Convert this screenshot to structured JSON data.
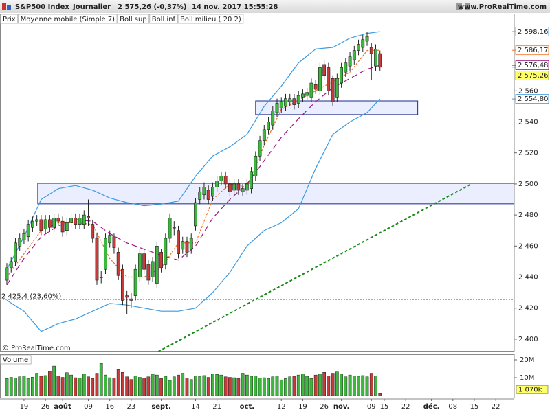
{
  "chart_data": {
    "type": "candlestick",
    "title": "S&P500 Index",
    "period": "Journalier",
    "last_quote": "2 575,26 (-0,37%)",
    "timestamp": "14 nov. 2017 15:55:28",
    "source": "www.ProRealTime.com",
    "watermark": "© ProRealTime.com",
    "xlim": [
      -1.6,
      118.3
    ],
    "xticks": [
      {
        "value": 4,
        "label": "19"
      },
      {
        "value": 9,
        "label": "26"
      },
      {
        "value": 13,
        "label": "août"
      },
      {
        "value": 19,
        "label": "09"
      },
      {
        "value": 24,
        "label": "16"
      },
      {
        "value": 29,
        "label": "23"
      },
      {
        "value": 36,
        "label": "sept."
      },
      {
        "value": 44,
        "label": "14"
      },
      {
        "value": 49,
        "label": "21"
      },
      {
        "value": 56,
        "label": "oct."
      },
      {
        "value": 64,
        "label": "12"
      },
      {
        "value": 69,
        "label": "19"
      },
      {
        "value": 74,
        "label": "26"
      },
      {
        "value": 78,
        "label": "nov."
      },
      {
        "value": 85,
        "label": "09"
      },
      {
        "value": 88,
        "label": "15"
      },
      {
        "value": 93,
        "label": "22"
      },
      {
        "value": 99,
        "label": "déc."
      },
      {
        "value": 104,
        "label": "08"
      },
      {
        "value": 109,
        "label": "15"
      },
      {
        "value": 114,
        "label": "22"
      }
    ],
    "ylim": [
      2392,
      2609.7
    ],
    "yticks": [
      {
        "value": 2400,
        "label": "2 400"
      },
      {
        "value": 2420,
        "label": "2 420"
      },
      {
        "value": 2440,
        "label": "2 440"
      },
      {
        "value": 2460,
        "label": "2 460"
      },
      {
        "value": 2480,
        "label": "2 480"
      },
      {
        "value": 2500,
        "label": "2 500"
      },
      {
        "value": 2520,
        "label": "2 520"
      },
      {
        "value": 2540,
        "label": "2 540"
      },
      {
        "value": 2560,
        "label": "2 560"
      }
    ],
    "candles": {
      "name": "Prix",
      "up_color": "#3cb83c",
      "down_color": "#c93a3a",
      "label_color": "#ffff66",
      "last_label": "2 575,26",
      "open": [
        2438,
        2446,
        2450,
        2460,
        2464,
        2466,
        2472,
        2476,
        2477,
        2471,
        2477,
        2472,
        2478,
        2476,
        2470,
        2475,
        2478,
        2474,
        2474,
        2479,
        2474,
        2465,
        2440,
        2445,
        2462,
        2466,
        2456,
        2445,
        2428,
        2426,
        2428,
        2440,
        2455,
        2448,
        2440,
        2436,
        2456,
        2448,
        2465,
        2472,
        2470,
        2458,
        2463,
        2458,
        2473,
        2490,
        2493,
        2496,
        2492,
        2498,
        2502,
        2505,
        2500,
        2496,
        2500,
        2495,
        2496,
        2497,
        2505,
        2518,
        2528,
        2535,
        2538,
        2546,
        2549,
        2550,
        2553,
        2555,
        2552,
        2556,
        2557,
        2556,
        2564,
        2560,
        2577,
        2575,
        2568,
        2556,
        2565,
        2572,
        2576,
        2580,
        2586,
        2588,
        2592,
        2588,
        2576,
        2584
      ],
      "high": [
        2449,
        2453,
        2465,
        2468,
        2471,
        2477,
        2479,
        2480,
        2480,
        2480,
        2480,
        2481,
        2481,
        2479,
        2478,
        2481,
        2481,
        2481,
        2483,
        2490,
        2477,
        2468,
        2444,
        2468,
        2470,
        2468,
        2459,
        2448,
        2431,
        2430,
        2448,
        2458,
        2458,
        2451,
        2453,
        2463,
        2458,
        2468,
        2481,
        2476,
        2473,
        2466,
        2466,
        2468,
        2491,
        2498,
        2501,
        2499,
        2501,
        2505,
        2508,
        2508,
        2503,
        2503,
        2503,
        2500,
        2503,
        2511,
        2521,
        2531,
        2538,
        2543,
        2550,
        2555,
        2556,
        2558,
        2558,
        2558,
        2560,
        2561,
        2562,
        2568,
        2567,
        2578,
        2580,
        2578,
        2570,
        2571,
        2578,
        2581,
        2585,
        2589,
        2593,
        2596,
        2598,
        2591,
        2590,
        2586
      ],
      "low": [
        2435,
        2443,
        2447,
        2457,
        2461,
        2463,
        2469,
        2473,
        2467,
        2468,
        2469,
        2469,
        2473,
        2466,
        2467,
        2472,
        2471,
        2471,
        2471,
        2473,
        2462,
        2435,
        2436,
        2442,
        2459,
        2455,
        2438,
        2422,
        2416,
        2420,
        2425,
        2437,
        2442,
        2435,
        2437,
        2433,
        2443,
        2445,
        2462,
        2467,
        2452,
        2455,
        2453,
        2455,
        2470,
        2487,
        2490,
        2487,
        2489,
        2495,
        2499,
        2497,
        2492,
        2493,
        2493,
        2492,
        2493,
        2494,
        2502,
        2515,
        2525,
        2532,
        2535,
        2543,
        2546,
        2547,
        2550,
        2548,
        2549,
        2553,
        2554,
        2553,
        2558,
        2557,
        2567,
        2557,
        2550,
        2553,
        2562,
        2569,
        2573,
        2577,
        2583,
        2585,
        2589,
        2567,
        2573,
        2573
      ],
      "close": [
        2446,
        2450,
        2462,
        2465,
        2468,
        2474,
        2476,
        2477,
        2470,
        2477,
        2472,
        2478,
        2476,
        2469,
        2475,
        2478,
        2474,
        2478,
        2480,
        2478,
        2465,
        2438,
        2440,
        2465,
        2467,
        2459,
        2441,
        2425,
        2427,
        2425,
        2445,
        2455,
        2445,
        2438,
        2450,
        2460,
        2446,
        2465,
        2478,
        2472,
        2455,
        2463,
        2456,
        2465,
        2488,
        2495,
        2498,
        2490,
        2498,
        2502,
        2505,
        2500,
        2495,
        2500,
        2496,
        2497,
        2500,
        2508,
        2518,
        2528,
        2535,
        2540,
        2547,
        2552,
        2553,
        2555,
        2555,
        2551,
        2557,
        2558,
        2559,
        2565,
        2561,
        2575,
        2570,
        2560,
        2553,
        2568,
        2575,
        2578,
        2582,
        2586,
        2590,
        2593,
        2595,
        2584,
        2587,
        2575.26
      ]
    },
    "indicators": [
      {
        "name": "Moyenne mobile (Simple 7)",
        "color": "#f07020",
        "line_style": "short-dash",
        "last_label": "2 586,17",
        "x": [
          0,
          4,
          8,
          12,
          16,
          20,
          24,
          28,
          32,
          36,
          40,
          44,
          48,
          52,
          56,
          60,
          64,
          68,
          72,
          76,
          80,
          84,
          87
        ],
        "values": [
          2440,
          2455,
          2470,
          2475,
          2475,
          2474,
          2452,
          2440,
          2440,
          2446,
          2462,
          2462,
          2490,
          2500,
          2498,
          2525,
          2548,
          2554,
          2560,
          2566,
          2572,
          2586,
          2586.17
        ]
      },
      {
        "name": "Boll sup",
        "color": "#3b9ae1",
        "line_style": "solid",
        "last_label": "2 598,16",
        "x": [
          0,
          4,
          8,
          12,
          16,
          20,
          24,
          28,
          32,
          36,
          40,
          44,
          48,
          52,
          56,
          60,
          64,
          68,
          72,
          76,
          80,
          84,
          87
        ],
        "values": [
          2445,
          2466,
          2490,
          2497,
          2499,
          2496,
          2491,
          2488,
          2486,
          2487,
          2489,
          2505,
          2518,
          2524,
          2532,
          2550,
          2563,
          2578,
          2587,
          2588,
          2594,
          2597,
          2598.16
        ]
      },
      {
        "name": "Boll inf",
        "color": "#3b9ae1",
        "line_style": "solid",
        "last_label": "2 554,80",
        "x": [
          0,
          4,
          8,
          12,
          16,
          20,
          24,
          28,
          32,
          36,
          40,
          44,
          48,
          52,
          56,
          60,
          64,
          68,
          72,
          76,
          80,
          84,
          87
        ],
        "values": [
          2425,
          2418,
          2405,
          2410,
          2413,
          2418,
          2423,
          2422,
          2420,
          2418,
          2418,
          2420,
          2430,
          2443,
          2460,
          2470,
          2475,
          2484,
          2510,
          2532,
          2540,
          2546,
          2554.8
        ]
      },
      {
        "name": "Boll milieu ( 20 2)",
        "color": "#a0157f",
        "line_style": "long-dash",
        "last_label": "2 576,48",
        "x": [
          0,
          4,
          8,
          12,
          16,
          20,
          24,
          28,
          32,
          36,
          40,
          44,
          48,
          52,
          56,
          60,
          64,
          68,
          72,
          76,
          80,
          84,
          87
        ],
        "values": [
          2435,
          2452,
          2466,
          2473,
          2477,
          2476,
          2468,
          2462,
          2458,
          2454,
          2451,
          2460,
          2478,
          2490,
          2500,
          2515,
          2530,
          2542,
          2553,
          2562,
          2568,
          2574,
          2576.48
        ]
      }
    ],
    "level": {
      "value": 2425.4,
      "label": "2 425,4 (23,60%)"
    },
    "zones": [
      {
        "x": [
          7.2,
          118.3
        ],
        "y": [
          2487.2,
          2500.4
        ]
      },
      {
        "x": [
          58,
          95.8
        ],
        "y": [
          2544.7,
          2553.5
        ]
      }
    ],
    "trendline": {
      "color": "#1a8a1a",
      "x": [
        35.3,
        108.3
      ],
      "y": [
        2392,
        2500
      ]
    },
    "volume": {
      "name": "Volume",
      "ylim": [
        -1.5,
        22.3
      ],
      "yticks": [
        {
          "value": 10,
          "label": "10M"
        },
        {
          "value": 20,
          "label": "20M"
        }
      ],
      "last_label": "1 070k",
      "values": [
        9.5,
        10.2,
        9.8,
        10.5,
        11.0,
        9.6,
        10.3,
        12.5,
        10.8,
        11.2,
        13.5,
        16.5,
        11.0,
        10.2,
        12.8,
        11.5,
        10.0,
        9.8,
        12.0,
        10.5,
        9.5,
        12.5,
        18.0,
        11.5,
        10.0,
        9.8,
        14.5,
        13.0,
        10.5,
        9.0,
        11.0,
        10.2,
        9.8,
        10.5,
        12.0,
        11.5,
        9.5,
        10.8,
        8.5,
        10.5,
        11.5,
        12.5,
        9.8,
        9.0,
        11.0,
        10.8,
        11.2,
        10.2,
        12.0,
        11.8,
        11.5,
        10.5,
        10.2,
        10.0,
        9.5,
        12.5,
        11.5,
        10.8,
        11.0,
        9.8,
        10.0,
        9.5,
        10.5,
        11.0,
        8.8,
        9.5,
        10.5,
        10.8,
        11.5,
        12.2,
        10.8,
        9.5,
        11.5,
        12.0,
        13.0,
        11.0,
        12.5,
        13.2,
        12.0,
        10.5,
        11.5,
        11.0,
        10.8,
        11.2,
        10.5,
        12.5,
        11.0,
        1.07
      ]
    }
  }
}
